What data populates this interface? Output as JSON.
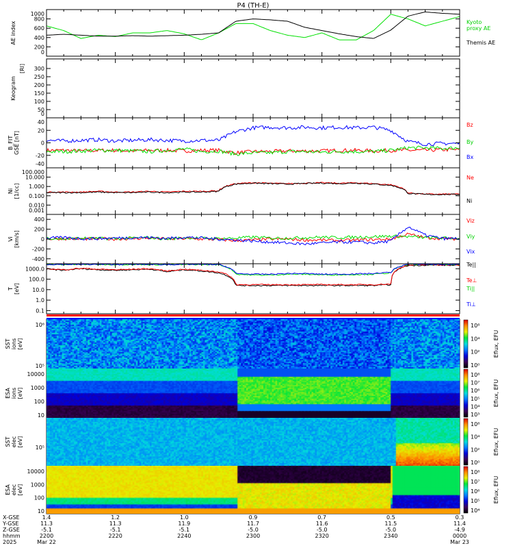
{
  "title": "P4 (TH-E)",
  "chart_data": [
    {
      "type": "line",
      "id": "ae",
      "ylabel": "AE index",
      "ylim": [
        0,
        1000
      ],
      "yticks": [
        "1000",
        "800",
        "600",
        "400",
        "200",
        "0"
      ],
      "yvals": [
        1000,
        800,
        600,
        400,
        200,
        0
      ],
      "log": false,
      "series": [
        {
          "name": "Kyoto proxy AE",
          "color": "#00e000",
          "values": [
            650,
            550,
            380,
            450,
            420,
            500,
            500,
            550,
            480,
            350,
            500,
            700,
            700,
            550,
            450,
            400,
            500,
            350,
            350,
            550,
            900,
            800,
            650,
            750,
            850
          ]
        },
        {
          "name": "Themis AE",
          "color": "#000000",
          "values": [
            450,
            470,
            450,
            430,
            430,
            440,
            430,
            440,
            450,
            470,
            500,
            750,
            800,
            780,
            750,
            620,
            550,
            480,
            420,
            380,
            560,
            860,
            950,
            920,
            900
          ]
        }
      ]
    },
    {
      "type": "heatmap",
      "id": "keogram",
      "ylabel": "Keogram",
      "unit": "[Rl]",
      "ylim": [
        0,
        300
      ],
      "yticks": [
        "300",
        "250",
        "200",
        "150",
        "100",
        "50",
        "0"
      ],
      "yvals": [
        300,
        250,
        200,
        150,
        100,
        50,
        0
      ],
      "series": []
    },
    {
      "type": "line",
      "id": "b",
      "ylabel": "B_FIT",
      "unit": "GSE [nT]",
      "ylim": [
        -40,
        40
      ],
      "yticks": [
        "40",
        "20",
        "0",
        "-20",
        "-40"
      ],
      "yvals": [
        40,
        20,
        0,
        -20,
        -40
      ],
      "log": false,
      "series": [
        {
          "name": "Bz",
          "color": "#ff0000",
          "values": [
            -12,
            -12,
            -13,
            -12,
            -12,
            -13,
            -12,
            -12,
            -13,
            -12,
            -12,
            -16,
            -14,
            -14,
            -13,
            -13,
            -13,
            -12,
            -12,
            -13,
            -12,
            -12,
            -12,
            -11,
            -11
          ]
        },
        {
          "name": "By",
          "color": "#00e000",
          "values": [
            -14,
            -14,
            -13,
            -12,
            -12,
            -13,
            -14,
            -12,
            -10,
            -14,
            -13,
            -18,
            -16,
            -16,
            -14,
            -14,
            -15,
            -14,
            -14,
            -14,
            -12,
            -8,
            -8,
            -9,
            -8
          ]
        },
        {
          "name": "Bx",
          "color": "#0000ff",
          "values": [
            4,
            3,
            4,
            5,
            3,
            4,
            5,
            4,
            3,
            4,
            4,
            18,
            24,
            25,
            24,
            25,
            24,
            25,
            24,
            25,
            20,
            2,
            -2,
            -1,
            -1
          ]
        }
      ]
    },
    {
      "type": "line",
      "id": "n",
      "ylabel": "Ni",
      "unit": "[1/cc]",
      "ylim": [
        0.001,
        100
      ],
      "yticks": [
        "100.000",
        "10.000",
        "1.000",
        "0.100",
        "0.010",
        "0.001"
      ],
      "yvals": [
        100,
        10,
        1,
        0.1,
        0.01,
        0.001
      ],
      "log": true,
      "series": [
        {
          "name": "Ne",
          "color": "#ff0000",
          "values": [
            0.25,
            0.25,
            0.25,
            0.3,
            0.25,
            0.25,
            0.3,
            0.25,
            0.3,
            0.3,
            0.35,
            2.0,
            2.5,
            2.2,
            2.0,
            2.3,
            2.5,
            2.2,
            2.5,
            2.0,
            1.5,
            0.2,
            0.15,
            0.15,
            0.15
          ]
        },
        {
          "name": "Ni",
          "color": "#000000",
          "values": [
            0.22,
            0.22,
            0.22,
            0.25,
            0.22,
            0.22,
            0.25,
            0.22,
            0.25,
            0.25,
            0.3,
            1.8,
            2.3,
            2.0,
            1.8,
            2.1,
            2.3,
            2.0,
            2.3,
            1.8,
            1.3,
            0.18,
            0.14,
            0.14,
            0.14
          ]
        }
      ]
    },
    {
      "type": "line",
      "id": "v",
      "ylabel": "Vi",
      "unit": "[km/s]",
      "ylim": [
        -500,
        500
      ],
      "yticks": [
        "400",
        "200",
        "0",
        "-200",
        "-400"
      ],
      "yvals": [
        400,
        200,
        0,
        -200,
        -400
      ],
      "log": false,
      "series": [
        {
          "name": "Viz",
          "color": "#ff0000",
          "values": [
            0,
            10,
            0,
            10,
            0,
            10,
            20,
            0,
            10,
            0,
            -10,
            -30,
            -20,
            0,
            0,
            -20,
            -20,
            -30,
            -20,
            -10,
            0,
            100,
            30,
            10,
            0
          ]
        },
        {
          "name": "Viy",
          "color": "#00e000",
          "values": [
            20,
            0,
            20,
            10,
            10,
            20,
            30,
            0,
            30,
            20,
            10,
            20,
            40,
            20,
            20,
            30,
            40,
            30,
            40,
            50,
            60,
            50,
            30,
            20,
            20
          ]
        },
        {
          "name": "Vix",
          "color": "#0000ff",
          "values": [
            20,
            30,
            10,
            10,
            20,
            30,
            30,
            10,
            40,
            20,
            0,
            -20,
            -40,
            -60,
            -80,
            -100,
            -80,
            -60,
            -60,
            -80,
            -40,
            250,
            80,
            10,
            10
          ]
        }
      ]
    },
    {
      "type": "line",
      "id": "t",
      "ylabel": "T",
      "unit": "[eV]",
      "ylim": [
        0.05,
        3000
      ],
      "yticks": [
        "1000.0",
        "100.0",
        "10.0",
        "1.0",
        "0.1"
      ],
      "yvals": [
        1000,
        100,
        10,
        1,
        0.1
      ],
      "log": true,
      "series": [
        {
          "name": "Te||",
          "color": "#000000",
          "values": [
            900,
            700,
            1000,
            800,
            700,
            800,
            900,
            500,
            800,
            600,
            400,
            25,
            25,
            25,
            25,
            25,
            25,
            25,
            25,
            25,
            30,
            2000,
            2200,
            2200,
            2000
          ]
        },
        {
          "name": "Te⊥",
          "color": "#ff0000",
          "values": [
            1000,
            800,
            1100,
            900,
            800,
            900,
            1000,
            600,
            900,
            700,
            500,
            30,
            30,
            30,
            30,
            30,
            30,
            30,
            30,
            30,
            35,
            2200,
            2400,
            2400,
            2200
          ]
        },
        {
          "name": "Ti||",
          "color": "#00e000",
          "values": [
            2500,
            2500,
            2500,
            2500,
            2500,
            2500,
            2500,
            2400,
            2500,
            2500,
            2400,
            300,
            250,
            250,
            300,
            300,
            260,
            260,
            280,
            300,
            400,
            2600,
            2600,
            2500,
            2500
          ]
        },
        {
          "name": "Ti⊥",
          "color": "#0000ff",
          "values": [
            2600,
            2600,
            2600,
            2600,
            2600,
            2600,
            2600,
            2500,
            2600,
            2600,
            2500,
            350,
            300,
            300,
            350,
            350,
            300,
            300,
            320,
            350,
            450,
            2700,
            2700,
            2600,
            2600
          ]
        }
      ]
    },
    {
      "type": "heatmap",
      "id": "sst_ion",
      "ylabel": "SST",
      "species": "ions",
      "unit": "[eV]",
      "yticks": [
        "10⁶",
        "10⁵"
      ],
      "cbar_label": "Eflux, EFU",
      "cbar_ticks": [
        "10⁸",
        "10⁴",
        "10²",
        "10⁰"
      ]
    },
    {
      "type": "heatmap",
      "id": "esa_ion",
      "ylabel": "ESA",
      "species": "ions",
      "unit": "[eV]",
      "yticks": [
        "10000",
        "1000",
        "100",
        "10"
      ],
      "cbar_label": "Eflux, EFU",
      "cbar_ticks": [
        "10⁸",
        "10⁷",
        "10⁶",
        "10⁵",
        "10⁴",
        "10³"
      ]
    },
    {
      "type": "heatmap",
      "id": "sst_elec",
      "ylabel": "SST",
      "species": "elec",
      "unit": "[eV]",
      "yticks": [
        "10⁵"
      ],
      "cbar_label": "Eflux, EFU",
      "cbar_ticks": [
        "10⁸",
        "10⁴",
        "10²",
        "10⁰"
      ]
    },
    {
      "type": "heatmap",
      "id": "esa_elec",
      "ylabel": "ESA",
      "species": "elec",
      "unit": "[eV]",
      "yticks": [
        "10000",
        "1000",
        "100",
        "10"
      ],
      "cbar_label": "Eflux, EFU",
      "cbar_ticks": [
        "10⁸",
        "10⁷",
        "10⁶",
        "10⁵",
        "10⁴"
      ]
    }
  ],
  "time_minutes_step": 5,
  "plasma_sheet_interval_minutes": [
    55,
    100
  ],
  "x_axis": {
    "row_labels": [
      "X-GSE",
      "Y-GSE",
      "Z-GSE",
      "hhmm",
      "2025"
    ],
    "ticks": [
      {
        "x": "1.4",
        "y": "11.3",
        "z": "-5.1",
        "hhmm": "2200",
        "date": "Mar 22"
      },
      {
        "x": "1.2",
        "y": "11.3",
        "z": "-5.1",
        "hhmm": "2220",
        "date": ""
      },
      {
        "x": "1.0",
        "y": "11.9",
        "z": "-5.1",
        "hhmm": "2240",
        "date": ""
      },
      {
        "x": "0.9",
        "y": "11.7",
        "z": "-5.0",
        "hhmm": "2300",
        "date": ""
      },
      {
        "x": "0.7",
        "y": "11.6",
        "z": "-5.0",
        "hhmm": "2320",
        "date": ""
      },
      {
        "x": "0.5",
        "y": "11.5",
        "z": "-5.0",
        "hhmm": "2340",
        "date": ""
      },
      {
        "x": "0.3",
        "y": "11.4",
        "z": "-4.9",
        "hhmm": "0000",
        "date": "Mar 23"
      }
    ]
  }
}
